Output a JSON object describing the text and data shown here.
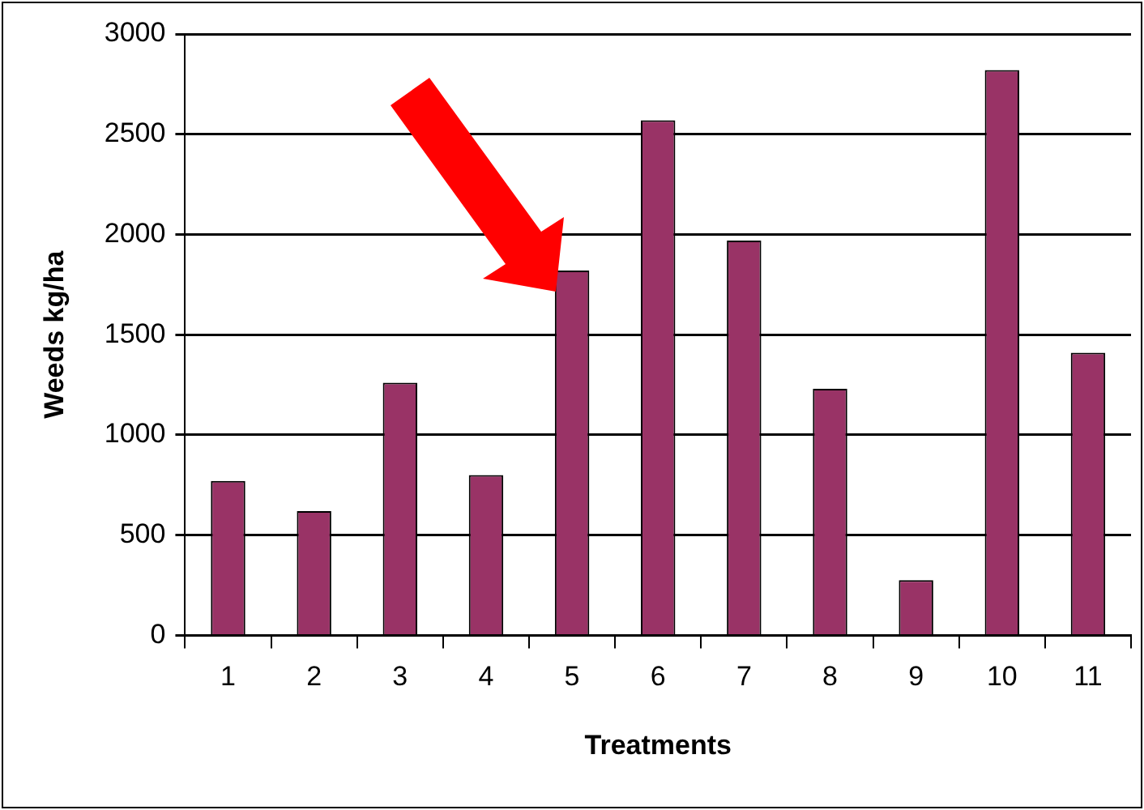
{
  "chart_data": {
    "type": "bar",
    "xlabel": "Treatments",
    "ylabel": "Weeds kg/ha",
    "categories": [
      "1",
      "2",
      "3",
      "4",
      "5",
      "6",
      "7",
      "8",
      "9",
      "10",
      "11"
    ],
    "values": [
      770,
      620,
      1260,
      800,
      1820,
      2570,
      1970,
      1230,
      275,
      2820,
      1410
    ],
    "color": "#993366",
    "ylim": [
      0,
      3000
    ],
    "yticks": [
      0,
      500,
      1000,
      1500,
      2000,
      2500,
      3000
    ],
    "grid": "y",
    "legend": false
  }
}
